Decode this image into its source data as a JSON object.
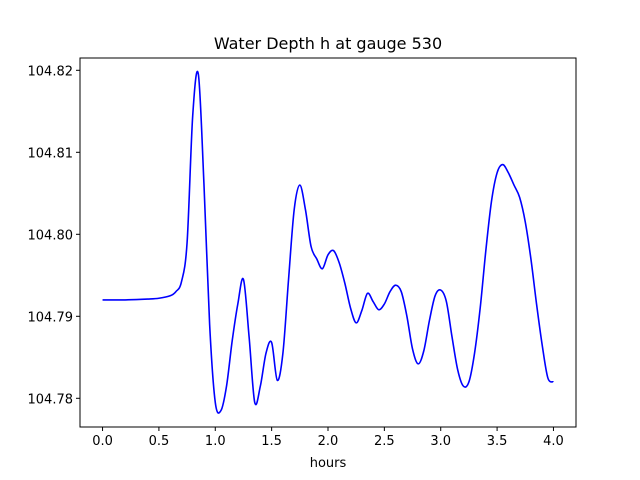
{
  "chart_data": {
    "type": "line",
    "title": "Water Depth h at gauge 530",
    "xlabel": "hours",
    "ylabel": "",
    "xlim": [
      -0.2,
      4.2
    ],
    "ylim": [
      104.7765,
      104.8215
    ],
    "xticks": [
      0.0,
      0.5,
      1.0,
      1.5,
      2.0,
      2.5,
      3.0,
      3.5,
      4.0
    ],
    "xtick_labels": [
      "0.0",
      "0.5",
      "1.0",
      "1.5",
      "2.0",
      "2.5",
      "3.0",
      "3.5",
      "4.0"
    ],
    "yticks": [
      104.78,
      104.79,
      104.8,
      104.81,
      104.82
    ],
    "ytick_labels": [
      "104.78",
      "104.79",
      "104.80",
      "104.81",
      "104.82"
    ],
    "grid": false,
    "legend": "none",
    "series": [
      {
        "color": "#0000ff",
        "x": [
          0.0,
          0.2,
          0.4,
          0.5,
          0.6,
          0.65,
          0.7,
          0.75,
          0.8,
          0.85,
          0.9,
          0.95,
          1.0,
          1.05,
          1.1,
          1.15,
          1.2,
          1.25,
          1.3,
          1.35,
          1.4,
          1.45,
          1.5,
          1.55,
          1.6,
          1.65,
          1.7,
          1.75,
          1.8,
          1.85,
          1.9,
          1.95,
          2.0,
          2.05,
          2.1,
          2.15,
          2.2,
          2.25,
          2.3,
          2.35,
          2.4,
          2.45,
          2.5,
          2.55,
          2.6,
          2.65,
          2.7,
          2.75,
          2.8,
          2.85,
          2.9,
          2.95,
          3.0,
          3.05,
          3.1,
          3.15,
          3.2,
          3.25,
          3.3,
          3.35,
          3.4,
          3.45,
          3.5,
          3.55,
          3.6,
          3.65,
          3.7,
          3.75,
          3.8,
          3.85,
          3.9,
          3.95,
          4.0
        ],
        "y": [
          104.792,
          104.792,
          104.7921,
          104.7922,
          104.7925,
          104.793,
          104.7942,
          104.799,
          104.8145,
          104.8195,
          104.806,
          104.789,
          104.7795,
          104.7785,
          104.7815,
          104.787,
          104.7915,
          104.7945,
          104.7875,
          104.7795,
          104.7815,
          104.7855,
          104.7868,
          104.7822,
          104.7855,
          104.7945,
          104.803,
          104.806,
          104.803,
          104.7985,
          104.797,
          104.7958,
          104.7975,
          104.798,
          104.7965,
          104.794,
          104.791,
          104.7892,
          104.7907,
          104.7928,
          104.7918,
          104.7908,
          104.7915,
          104.793,
          104.7938,
          104.793,
          104.79,
          104.786,
          104.7842,
          104.7858,
          104.7895,
          104.7925,
          104.7932,
          104.7918,
          104.7875,
          104.7835,
          104.7815,
          104.782,
          104.7855,
          104.791,
          104.798,
          104.804,
          104.8075,
          104.8085,
          104.8075,
          104.806,
          104.8045,
          104.8015,
          104.797,
          104.7915,
          104.7865,
          104.7825,
          104.782
        ]
      }
    ]
  }
}
